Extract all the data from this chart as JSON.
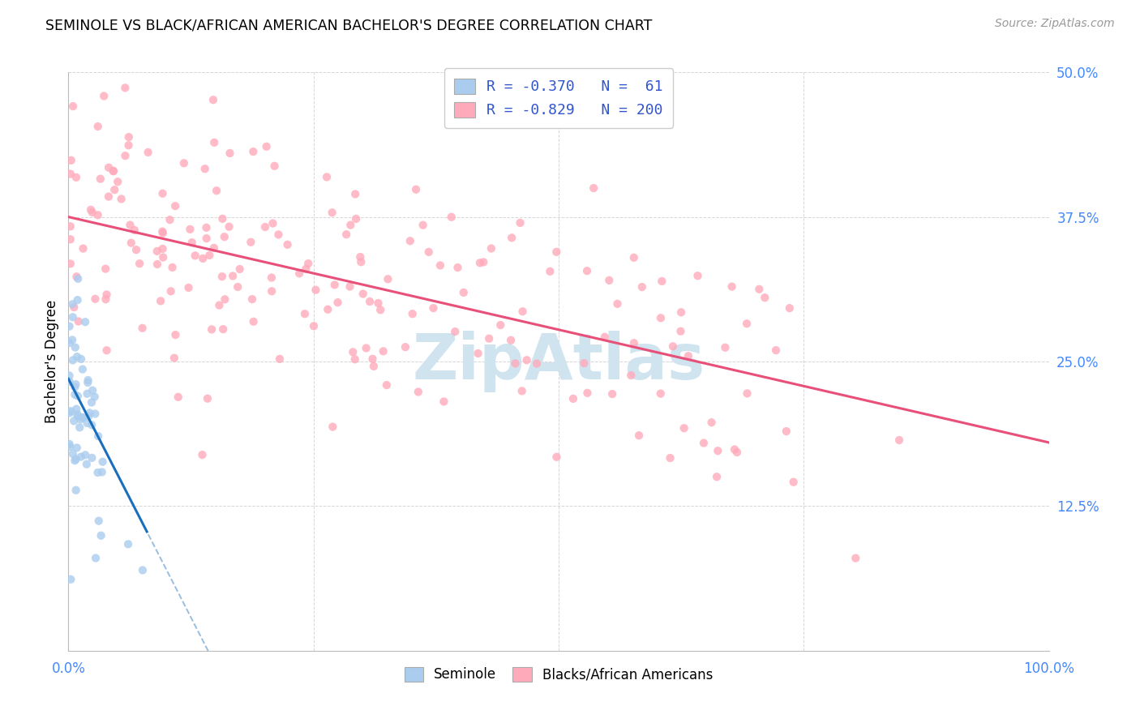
{
  "title": "SEMINOLE VS BLACK/AFRICAN AMERICAN BACHELOR'S DEGREE CORRELATION CHART",
  "source_text": "Source: ZipAtlas.com",
  "ylabel": "Bachelor's Degree",
  "xlim": [
    0,
    1.0
  ],
  "ylim": [
    0,
    0.5
  ],
  "ytick_labels": [
    "12.5%",
    "25.0%",
    "37.5%",
    "50.0%"
  ],
  "ytick_values": [
    0.125,
    0.25,
    0.375,
    0.5
  ],
  "legend_blue_R": "-0.370",
  "legend_blue_N": "61",
  "legend_pink_R": "-0.829",
  "legend_pink_N": "200",
  "seminole_scatter_color": "#aaccee",
  "black_scatter_color": "#ffaabb",
  "regression_blue_color": "#1a6fbd",
  "regression_pink_color": "#e8507a",
  "watermark_color": "#d0e4f0",
  "background_color": "#ffffff",
  "grid_color": "#cccccc",
  "tick_color": "#4488ff",
  "blue_reg_intercept": 0.235,
  "blue_reg_slope": -1.65,
  "pink_reg_intercept": 0.375,
  "pink_reg_slope": -0.195
}
